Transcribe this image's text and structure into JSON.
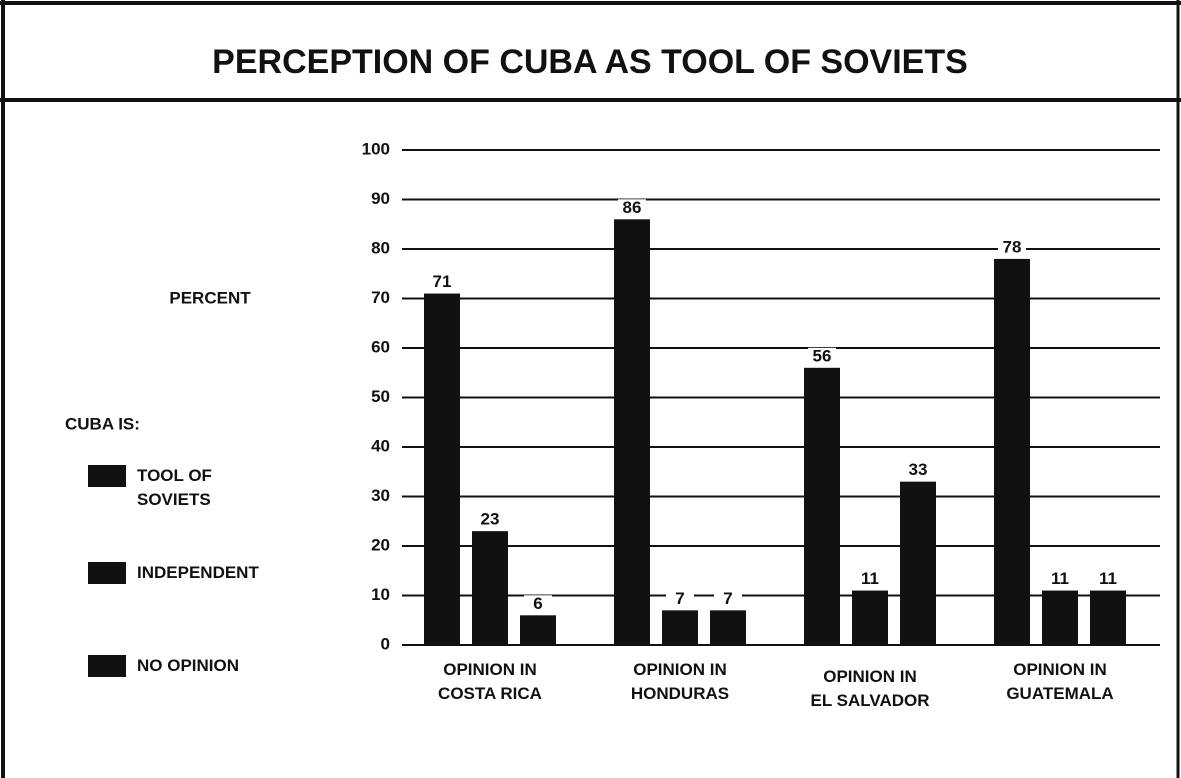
{
  "chart_data": {
    "type": "bar",
    "title": "PERCEPTION OF CUBA AS TOOL OF SOVIETS",
    "y_label": "PERCENT",
    "legend_title": "CUBA IS:",
    "categories": [
      "OPINION IN\nCOSTA RICA",
      "OPINION IN\nHONDURAS",
      "OPINION IN\nEL SALVADOR",
      "OPINION IN\nGUATEMALA"
    ],
    "series": [
      {
        "name": "TOOL OF\nSOVIETS",
        "color": "#111111",
        "values": [
          71,
          86,
          56,
          78
        ]
      },
      {
        "name": "INDEPENDENT",
        "color": "#111111",
        "values": [
          23,
          7,
          11,
          11
        ]
      },
      {
        "name": "NO OPINION",
        "color": "#111111",
        "values": [
          6,
          7,
          33,
          11
        ]
      }
    ],
    "ylim": [
      0,
      100
    ],
    "yticks": [
      0,
      10,
      20,
      30,
      40,
      50,
      60,
      70,
      80,
      90,
      100
    ],
    "grid": true,
    "legend": "left"
  }
}
